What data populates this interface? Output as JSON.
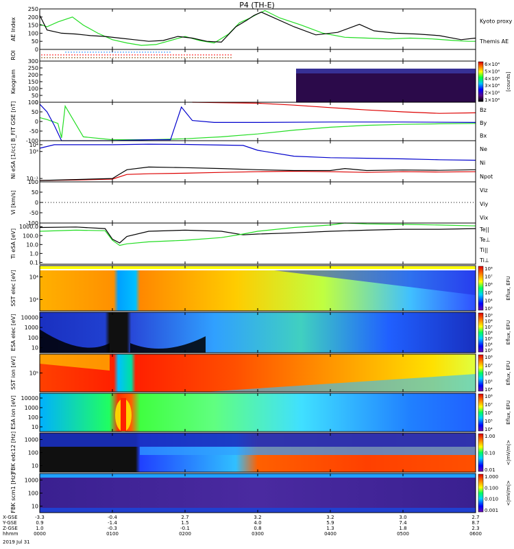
{
  "title": "P4 (TH-E)",
  "colors": {
    "red": "#dd0000",
    "green": "#22dd22",
    "blue": "#0000cc",
    "black": "#000000",
    "roi_red": "#ff0000",
    "roi_blue": "#2288ff",
    "roi_brown": "#884400"
  },
  "chart_data": {
    "type": "line",
    "x_range": [
      "0000",
      "0600"
    ],
    "x_ticks": [
      "0000",
      "0100",
      "0200",
      "0300",
      "0400",
      "0500",
      "0600"
    ],
    "panels": [
      {
        "id": "ae",
        "ylabel": "AE Index",
        "ylim": [
          0,
          250
        ],
        "yticks": [
          "250",
          "200",
          "150",
          "100",
          "50",
          "0"
        ],
        "ytick_values": [
          250,
          200,
          150,
          100,
          50,
          0
        ],
        "legend": [
          "Kyoto proxy AE",
          "Themis AE"
        ],
        "series": [
          {
            "name": "Kyoto proxy AE",
            "color": "green",
            "x": [
              0,
              0.1,
              0.25,
              0.45,
              0.6,
              0.8,
              1.0,
              1.2,
              1.4,
              1.6,
              1.8,
              2.0,
              2.2,
              2.4,
              2.6,
              2.75,
              2.9,
              3.0,
              3.1,
              3.3,
              3.6,
              3.9,
              4.2,
              4.5,
              4.8,
              5.1,
              5.4,
              5.7,
              5.9,
              6.0
            ],
            "values": [
              155,
              140,
              170,
              200,
              150,
              100,
              60,
              40,
              25,
              30,
              55,
              80,
              55,
              40,
              95,
              165,
              195,
              220,
              240,
              195,
              150,
              100,
              75,
              70,
              65,
              70,
              65,
              55,
              50,
              50
            ]
          },
          {
            "name": "Themis AE",
            "color": "black",
            "x": [
              0,
              0.1,
              0.3,
              0.5,
              0.7,
              0.9,
              1.1,
              1.3,
              1.5,
              1.7,
              1.9,
              2.1,
              2.3,
              2.5,
              2.7,
              2.85,
              2.95,
              3.05,
              3.2,
              3.5,
              3.8,
              4.1,
              4.4,
              4.6,
              4.9,
              5.2,
              5.5,
              5.8,
              6.0
            ],
            "values": [
              210,
              120,
              100,
              95,
              85,
              80,
              70,
              60,
              50,
              55,
              80,
              70,
              50,
              45,
              140,
              180,
              210,
              230,
              200,
              140,
              90,
              105,
              155,
              115,
              100,
              95,
              85,
              60,
              70
            ]
          }
        ]
      },
      {
        "id": "roi",
        "ylabel": "ROI",
        "series": []
      },
      {
        "id": "keogram",
        "ylabel": "Keogram",
        "ylim": [
          0,
          300
        ],
        "yticks": [
          "300",
          "250",
          "200",
          "150",
          "100",
          "50",
          "0"
        ],
        "ytick_values": [
          300,
          250,
          200,
          150,
          100,
          50,
          0
        ],
        "colorbar_label": "[counts]",
        "colorbar_ticks": [
          "6×10⁴",
          "5×10⁴",
          "4×10⁴",
          "3×10⁴",
          "2×10⁴",
          "1×10⁴"
        ]
      },
      {
        "id": "bfield",
        "ylabel": "B_FIT GSE [nT]",
        "ylim": [
          -100,
          100
        ],
        "yticks": [
          "100",
          "50",
          "0",
          "-50",
          "-100"
        ],
        "ytick_values": [
          100,
          50,
          0,
          -50,
          -100
        ],
        "legend": [
          "Bz",
          "By",
          "Bx"
        ],
        "series": [
          {
            "name": "Bz",
            "color": "red",
            "x": [
              2.1,
              2.5,
              3.0,
              3.5,
              4.0,
              4.5,
              5.0,
              5.5,
              6.0
            ],
            "values": [
              100,
              98,
              95,
              85,
              72,
              60,
              50,
              42,
              45
            ]
          },
          {
            "name": "By",
            "color": "green",
            "x": [
              0,
              0.1,
              0.25,
              0.3,
              0.35,
              0.6,
              1.0,
              1.5,
              2.0,
              2.5,
              3.0,
              3.5,
              4.0,
              4.5,
              5.0,
              5.5,
              6.0
            ],
            "values": [
              20,
              10,
              -10,
              -85,
              80,
              -80,
              -95,
              -95,
              -90,
              -80,
              -65,
              -45,
              -30,
              -20,
              -15,
              -12,
              -10
            ]
          },
          {
            "name": "Bx",
            "color": "blue",
            "x": [
              0,
              0.1,
              0.2,
              0.3,
              0.6,
              1.0,
              1.5,
              1.8,
              1.95,
              2.1,
              2.4,
              3.0,
              4.0,
              5.0,
              6.0
            ],
            "values": [
              90,
              50,
              -20,
              -100,
              -100,
              -100,
              -95,
              -95,
              75,
              5,
              -5,
              -5,
              -3,
              -3,
              -5
            ]
          }
        ]
      },
      {
        "id": "density",
        "ylabel": "Ni eSA [1/cc]",
        "yticks": [
          "10⁴",
          "10³",
          "10⁻¹"
        ],
        "legend": [
          "Ne",
          "Ni",
          "Npot"
        ],
        "series": [
          {
            "name": "Ne",
            "color": "red",
            "x": [
              0,
              0.5,
              1.0,
              1.2,
              1.5,
              2.0,
              2.5,
              3.0,
              3.5,
              4.0,
              4.5,
              5.0,
              5.5,
              6.0
            ],
            "values": [
              0.05,
              0.06,
              0.08,
              0.4,
              0.5,
              0.6,
              0.8,
              1.0,
              1.2,
              1.0,
              0.8,
              1.0,
              0.9,
              1.0
            ]
          },
          {
            "name": "Ni",
            "color": "black",
            "x": [
              0,
              0.5,
              1.0,
              1.2,
              1.5,
              2.0,
              2.5,
              3.0,
              3.5,
              4.0,
              4.2,
              4.5,
              5.0,
              5.5,
              6.0
            ],
            "values": [
              0.05,
              0.07,
              0.1,
              2,
              5,
              4,
              3,
              2,
              1.5,
              1.5,
              3,
              1.5,
              1.8,
              1.6,
              2
            ]
          },
          {
            "name": "Npot",
            "color": "blue",
            "x": [
              0,
              0.2,
              1.0,
              1.5,
              2.0,
              2.5,
              2.8,
              3.0,
              3.5,
              4.0,
              4.5,
              5.0,
              5.5,
              6.0
            ],
            "values": [
              3000,
              10000,
              10000,
              12000,
              11000,
              9000,
              8000,
              1500,
              200,
              120,
              100,
              80,
              60,
              50
            ]
          }
        ]
      },
      {
        "id": "velocity",
        "ylabel": "Vi [km/s]",
        "ylim": [
          -100,
          100
        ],
        "yticks": [
          "100",
          "50",
          "0",
          "-50",
          "-100"
        ],
        "ytick_values": [
          100,
          50,
          0,
          -50,
          -100
        ],
        "legend": [
          "Viz",
          "Viy",
          "Vix"
        ],
        "series": []
      },
      {
        "id": "temperature",
        "ylabel": "Ti eSA [eV]",
        "yticks": [
          "1000.0",
          "100.0",
          "10.0",
          "1.0",
          "0.1"
        ],
        "legend": [
          "Te||",
          "Te⊥",
          "Ti||",
          "Ti⊥"
        ],
        "series": [
          {
            "name": "Te||",
            "color": "black",
            "x": [
              0,
              0.5,
              0.9,
              1.0,
              1.1,
              1.2,
              1.5,
              2.0,
              2.5,
              2.8,
              3.0,
              3.5,
              4.0,
              4.5,
              5.0,
              5.5,
              6.0
            ],
            "values": [
              800,
              900,
              600,
              40,
              15,
              80,
              300,
              400,
              300,
              120,
              150,
              200,
              300,
              400,
              500,
              500,
              600
            ]
          },
          {
            "name": "Ti||",
            "color": "green",
            "x": [
              0,
              0.5,
              0.9,
              1.0,
              1.1,
              1.2,
              1.5,
              2.0,
              2.5,
              2.8,
              3.0,
              3.5,
              4.0,
              4.2,
              4.5,
              5.0,
              5.5,
              6.0
            ],
            "values": [
              300,
              400,
              350,
              30,
              8,
              12,
              20,
              30,
              60,
              150,
              300,
              800,
              1500,
              2500,
              2000,
              1800,
              1500,
              1200
            ]
          }
        ]
      },
      {
        "id": "sst_e",
        "type": "heatmap",
        "ylabel": "SST elec [eV]",
        "yticks": [
          "10⁴",
          "10³"
        ],
        "colorbar_label": "Eflux, EFU",
        "colorbar_ticks": [
          "10⁸",
          "10⁷",
          "10⁶",
          "10⁵",
          "10⁴",
          "10³"
        ]
      },
      {
        "id": "esa_e",
        "type": "heatmap",
        "ylabel": "ESA elec [eV]",
        "yticks": [
          "10000",
          "1000",
          "100",
          "10"
        ],
        "colorbar_label": "Eflux, EFU",
        "colorbar_ticks": [
          "10⁹",
          "10⁸",
          "10⁷",
          "10⁶",
          "10⁵",
          "10⁴",
          "10³"
        ]
      },
      {
        "id": "sst_i",
        "type": "heatmap",
        "ylabel": "SST ion [eV]",
        "yticks": [
          "10⁵"
        ],
        "colorbar_label": "Eflux, EFU",
        "colorbar_ticks": [
          "10⁸",
          "10⁷",
          "10⁶",
          "10⁵",
          "10⁴"
        ]
      },
      {
        "id": "esa_i",
        "type": "heatmap",
        "ylabel": "ESA ion [eV]",
        "yticks": [
          "10000",
          "1000",
          "100",
          "10"
        ],
        "colorbar_label": "Eflux, EFU",
        "colorbar_ticks": [
          "10⁸",
          "10⁷",
          "10⁶",
          "10⁵",
          "10⁴"
        ]
      },
      {
        "id": "fbk_e",
        "type": "heatmap",
        "ylabel": "FBK edc12 [Hz]",
        "yticks": [
          "1000",
          "100",
          "10"
        ],
        "colorbar_label": "<|mV/m|>",
        "colorbar_ticks": [
          "1.00",
          "0.10",
          "0.01"
        ]
      },
      {
        "id": "fbk_b",
        "type": "heatmap",
        "ylabel": "FBK scm1 [Hz]",
        "yticks": [
          "1000",
          "100",
          "10"
        ],
        "colorbar_label": "<|mV/m|>",
        "colorbar_ticks": [
          "1.000",
          "0.100",
          "0.010",
          "0.001"
        ]
      }
    ],
    "ephemeris": {
      "rows": [
        {
          "label": "X-GSE",
          "values": [
            "-3.3",
            "-0.4",
            "2.7",
            "3.2",
            "3.2",
            "3.0",
            "2.7"
          ]
        },
        {
          "label": "Y-GSE",
          "values": [
            "0.9",
            "-1.4",
            "1.5",
            "4.0",
            "5.9",
            "7.4",
            "8.7"
          ]
        },
        {
          "label": "Z-GSE",
          "values": [
            "1.0",
            "-0.3",
            "-0.1",
            "0.8",
            "1.3",
            "1.8",
            "2.3"
          ]
        },
        {
          "label": "hhmm",
          "values": [
            "0000",
            "0100",
            "0200",
            "0300",
            "0400",
            "0500",
            "0600"
          ]
        }
      ],
      "date": "2019 Jul 31"
    }
  }
}
